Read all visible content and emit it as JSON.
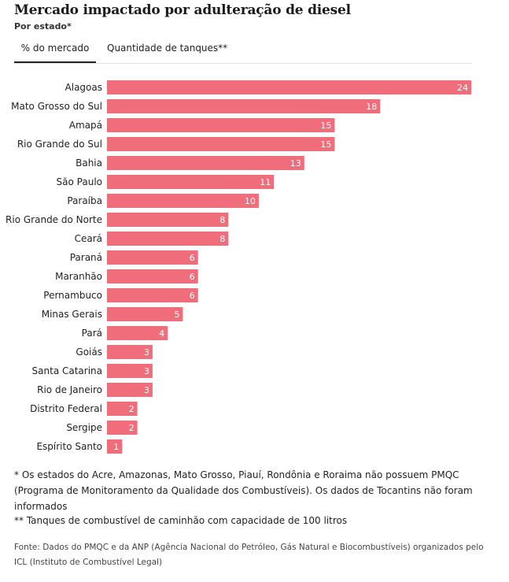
{
  "header": {
    "title": "Mercado impactado por adulteração de diesel",
    "subtitle": "Por estado*"
  },
  "tabs": [
    {
      "label": "% do mercado",
      "active": true
    },
    {
      "label": "Quantidade de tanques**",
      "active": false
    }
  ],
  "colors": {
    "bar": "#f06e7c",
    "value_label": "#ffffff"
  },
  "chart_data": {
    "type": "bar",
    "orientation": "horizontal",
    "categories": [
      "Alagoas",
      "Mato Grosso do Sul",
      "Amapá",
      "Rio Grande do Sul",
      "Bahia",
      "São Paulo",
      "Paraíba",
      "Rio Grande do Norte",
      "Ceará",
      "Paraná",
      "Maranhão",
      "Pernambuco",
      "Minas Gerais",
      "Pará",
      "Goiás",
      "Santa Catarina",
      "Rio de Janeiro",
      "Distrito Federal",
      "Sergipe",
      "Espírito Santo"
    ],
    "values": [
      24,
      18,
      15,
      15,
      13,
      11,
      10,
      8,
      8,
      6,
      6,
      6,
      5,
      4,
      3,
      3,
      3,
      2,
      2,
      1
    ],
    "xlim": [
      0,
      24
    ],
    "grid": false,
    "legend": "none"
  },
  "footer": {
    "note1": "* Os estados do Acre, Amazonas, Mato Grosso, Piauí, Rondônia e Roraima não possuem PMQC (Programa de Monitoramento da Qualidade dos Combustíveis). Os dados de Tocantins não foram informados",
    "note2": "** Tanques de combustível de caminhão com capacidade de 100 litros",
    "source": "Fonte: Dados do PMQC e da ANP (Agência Nacional do Petróleo, Gás Natural e Biocombustíveis) organizados pelo ICL (Instituto de Combustível Legal)"
  }
}
